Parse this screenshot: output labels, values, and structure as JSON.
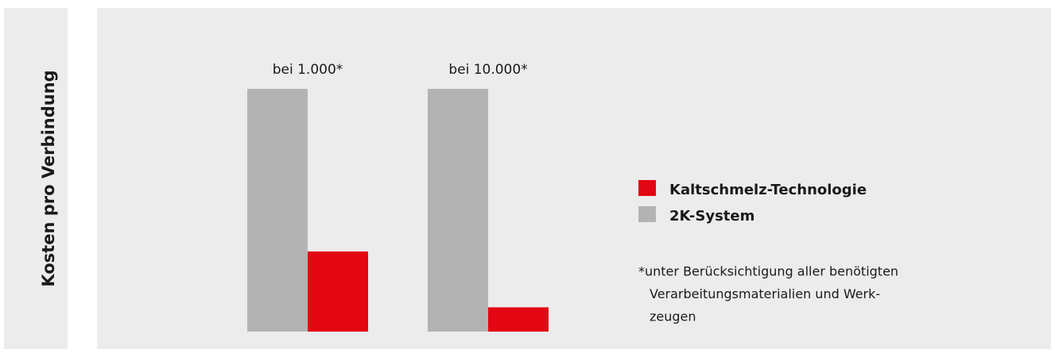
{
  "chart_data": {
    "type": "bar",
    "ylabel": "Kosten pro Verbindung",
    "categories": [
      "bei 1.000*",
      "bei 10.000*"
    ],
    "series": [
      {
        "name": "2K-System",
        "color": "#b3b3b3",
        "values": [
          100,
          100
        ]
      },
      {
        "name": "Kaltschmelz-Technologie",
        "color": "#e30613",
        "values": [
          33,
          10
        ]
      }
    ],
    "legend_order": [
      "Kaltschmelz-Technologie",
      "2K-System"
    ],
    "ylim": [
      0,
      100
    ],
    "footnote": [
      "*unter Berücksichtigung aller benötigten",
      "Verarbeitungsmaterialien und Werk-",
      "zeugen"
    ]
  }
}
